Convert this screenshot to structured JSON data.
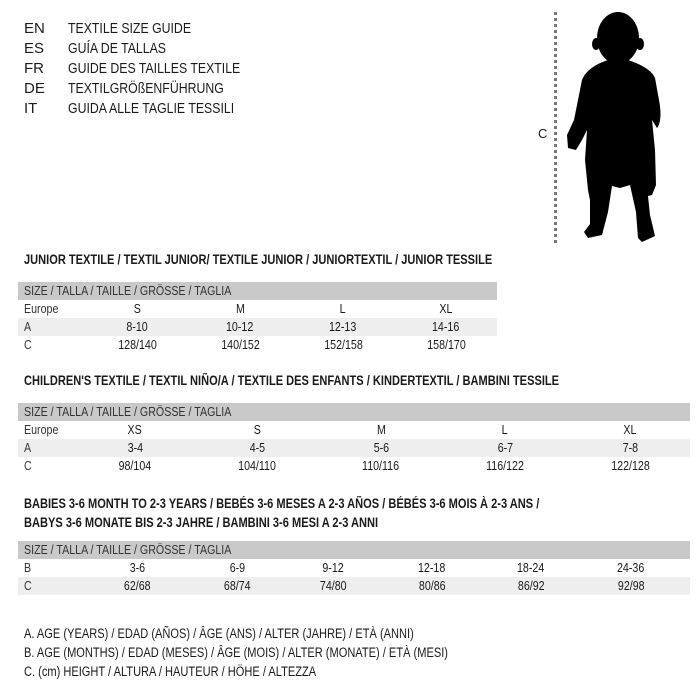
{
  "languages": [
    {
      "code": "EN",
      "name": "TEXTILE SIZE GUIDE"
    },
    {
      "code": "ES",
      "name": "GUÍA DE TALLAS"
    },
    {
      "code": "FR",
      "name": "GUIDE DES TAILLES TEXTILE"
    },
    {
      "code": "DE",
      "name": "TEXTILGRÖßENFÜHRUNG"
    },
    {
      "code": "IT",
      "name": "GUIDA ALLE TAGLIE TESSILI"
    }
  ],
  "figure": {
    "height_label": "C",
    "icon": "baby-silhouette"
  },
  "junior": {
    "title": "JUNIOR TEXTILE / TEXTIL JUNIOR/ TEXTILE JUNIOR / JUNIORTEXTIL / JUNIOR TESSILE",
    "header": "SIZE / TALLA / TAILLE / GRÖSSE / TAGLIA",
    "rows": [
      {
        "label": "Europe",
        "values": [
          "S",
          "M",
          "L",
          "XL"
        ]
      },
      {
        "label": "A",
        "values": [
          "8-10",
          "10-12",
          "12-13",
          "14-16"
        ]
      },
      {
        "label": "C",
        "values": [
          "128/140",
          "140/152",
          "152/158",
          "158/170"
        ]
      }
    ]
  },
  "children": {
    "title": "CHILDREN'S TEXTILE / TEXTIL NIÑO/A / TEXTILE DES ENFANTS / KINDERTEXTIL / BAMBINI TESSILE",
    "header": "SIZE / TALLA / TAILLE / GRÖSSE / TAGLIA",
    "rows": [
      {
        "label": "Europe",
        "values": [
          "XS",
          "S",
          "M",
          "L",
          "XL"
        ]
      },
      {
        "label": "A",
        "values": [
          "3-4",
          "4-5",
          "5-6",
          "6-7",
          "7-8"
        ]
      },
      {
        "label": "C",
        "values": [
          "98/104",
          "104/110",
          "110/116",
          "116/122",
          "122/128"
        ]
      }
    ]
  },
  "babies": {
    "title_line1": "BABIES 3-6 MONTH TO 2-3 YEARS / BEBÉS 3-6 MESES A 2-3 AÑOS / BÉBÉS 3-6 MOIS À 2-3 ANS /",
    "title_line2": "BABYS 3-6 MONATE BIS 2-3 JAHRE / BAMBINI 3-6 MESI A 2-3 ANNI",
    "header": "SIZE / TALLA / TAILLE / GRÖSSE / TAGLIA",
    "rows": [
      {
        "label": "B",
        "values": [
          "3-6",
          "6-9",
          "9-12",
          "12-18",
          "18-24",
          "24-36"
        ]
      },
      {
        "label": "C",
        "values": [
          "62/68",
          "68/74",
          "74/80",
          "80/86",
          "86/92",
          "92/98"
        ]
      }
    ]
  },
  "legend": [
    "A. AGE (YEARS) / EDAD (AÑOS) / ÂGE (ANS) / ALTER (JAHRE) / ETÀ (ANNI)",
    "B. AGE (MONTHS) / EDAD (MESES) / ÂGE (MOIS) / ALTER (MONATE) / ETÀ (MESI)",
    "C. (cm) HEIGHT / ALTURA / HAUTEUR / HÖHE / ALTEZZA"
  ],
  "colors": {
    "header_band": "#c9c9c9",
    "alt_row": "#eeeeee",
    "text": "#1a1a1a"
  }
}
